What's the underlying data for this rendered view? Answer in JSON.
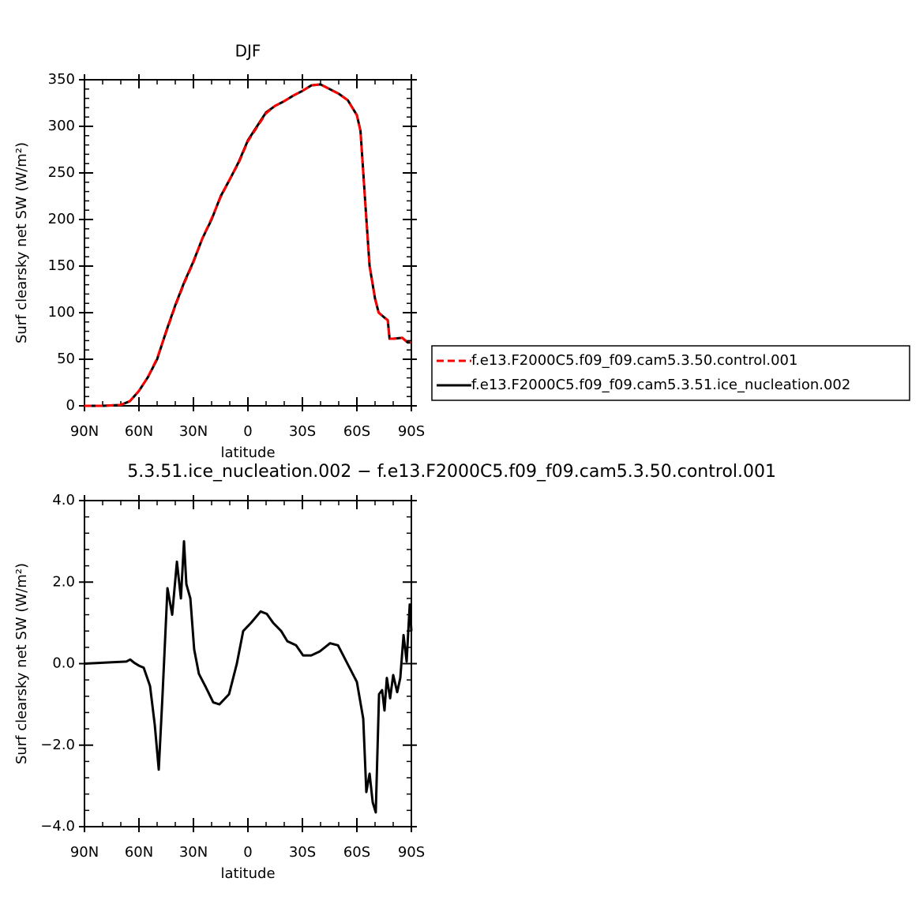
{
  "chart_data": [
    {
      "type": "line",
      "title": "DJF",
      "xlabel": "latitude",
      "ylabel": "Surf clearsky net SW (W/m²)",
      "x": [
        90,
        80,
        70,
        65,
        60,
        55,
        50,
        45,
        40,
        35,
        30,
        25,
        20,
        15,
        10,
        5,
        0,
        -5,
        -10,
        -15,
        -20,
        -25,
        -30,
        -35,
        -40,
        -45,
        -50,
        -55,
        -60,
        -62,
        -65,
        -67,
        -70,
        -72,
        -75,
        -77,
        -78,
        -80,
        -85,
        -88,
        -90
      ],
      "series": [
        {
          "name": "f.e13.F2000C5.f09_f09.cam5.3.51.ice_nucleation.002",
          "color": "#000000",
          "style": "solid",
          "values": [
            0,
            0,
            1,
            5,
            16,
            31,
            50,
            80,
            108,
            133,
            155,
            180,
            200,
            225,
            243,
            262,
            285,
            300,
            315,
            322,
            327,
            333,
            338,
            344,
            345,
            340,
            335,
            328,
            312,
            295,
            207,
            150,
            115,
            100,
            95,
            92,
            72,
            72,
            73,
            68,
            68
          ]
        },
        {
          "name": "f.e13.F2000C5.f09_f09.cam5.3.50.control.001",
          "color": "#ff0000",
          "style": "dashed",
          "values": [
            0,
            0,
            1,
            5,
            16,
            31,
            51,
            79,
            107,
            132,
            154,
            180,
            201,
            224,
            243,
            261,
            284,
            299,
            314,
            322,
            327,
            333,
            338,
            344,
            345,
            340,
            335,
            328,
            312,
            295,
            207,
            151,
            116,
            100,
            95,
            92,
            72,
            72,
            73,
            68,
            68
          ]
        }
      ],
      "legend": "right",
      "xlim": [
        90,
        -90
      ],
      "xticks": [
        {
          "value": 90,
          "label": "90N"
        },
        {
          "value": 60,
          "label": "60N"
        },
        {
          "value": 30,
          "label": "30N"
        },
        0,
        {
          "value": -30,
          "label": "30S"
        },
        {
          "value": -60,
          "label": "60S"
        },
        {
          "value": -90,
          "label": "90S"
        }
      ],
      "ylim": [
        0,
        350
      ],
      "yticks": [
        0,
        50,
        100,
        150,
        200,
        250,
        300,
        350
      ]
    },
    {
      "type": "line",
      "title": "5.3.51.ice_nucleation.002 − f.e13.F2000C5.f09_f09.cam5.3.50.control.001",
      "xlabel": "latitude",
      "ylabel": "Surf clearsky net SW (W/m²)",
      "x": [
        90,
        67,
        64.8,
        62.6,
        60,
        57.4,
        53.9,
        51.3,
        49.1,
        47,
        44.3,
        41.7,
        39.1,
        36.9,
        35.2,
        33.9,
        31.7,
        29.6,
        27,
        23.5,
        19.1,
        15.7,
        10.4,
        6.1,
        2.6,
        -1.7,
        -7,
        -10.4,
        -13.9,
        -18.3,
        -21.7,
        -26.5,
        -30.4,
        -34.8,
        -39.6,
        -45.2,
        -49.6,
        -54.8,
        -60,
        -63.5,
        -65.2,
        -67,
        -68.7,
        -70.4,
        -72.2,
        -73.9,
        -75.2,
        -76.5,
        -78.3,
        -80,
        -82.2,
        -83.9,
        -85.7,
        -87.4,
        -89.1,
        -90
      ],
      "color": "#000000",
      "values": [
        0,
        0.05,
        0.1,
        0.02,
        -0.05,
        -0.1,
        -0.55,
        -1.5,
        -2.6,
        -0.75,
        1.85,
        1.2,
        2.5,
        1.6,
        3.0,
        1.95,
        1.6,
        0.35,
        -0.25,
        -0.55,
        -0.95,
        -1.0,
        -0.75,
        0.0,
        0.8,
        1.0,
        1.28,
        1.22,
        1.0,
        0.8,
        0.55,
        0.45,
        0.2,
        0.2,
        0.3,
        0.5,
        0.45,
        0.0,
        -0.45,
        -1.35,
        -3.15,
        -2.7,
        -3.4,
        -3.65,
        -0.75,
        -0.65,
        -1.15,
        -0.35,
        -0.85,
        -0.28,
        -0.7,
        -0.35,
        0.7,
        0.05,
        1.45,
        0.8
      ],
      "xlim": [
        90,
        -90
      ],
      "xticks": [
        {
          "value": 90,
          "label": "90N"
        },
        {
          "value": 60,
          "label": "60N"
        },
        {
          "value": 30,
          "label": "30N"
        },
        0,
        {
          "value": -30,
          "label": "30S"
        },
        {
          "value": -60,
          "label": "60S"
        },
        {
          "value": -90,
          "label": "90S"
        }
      ],
      "ylim": [
        -4,
        4
      ],
      "yticks": [
        {
          "value": -4,
          "label": "−4.0"
        },
        {
          "value": -2,
          "label": "−2.0"
        },
        {
          "value": 0,
          "label": "0.0"
        },
        {
          "value": 2,
          "label": "2.0"
        },
        {
          "value": 4,
          "label": "4.0"
        }
      ]
    }
  ]
}
